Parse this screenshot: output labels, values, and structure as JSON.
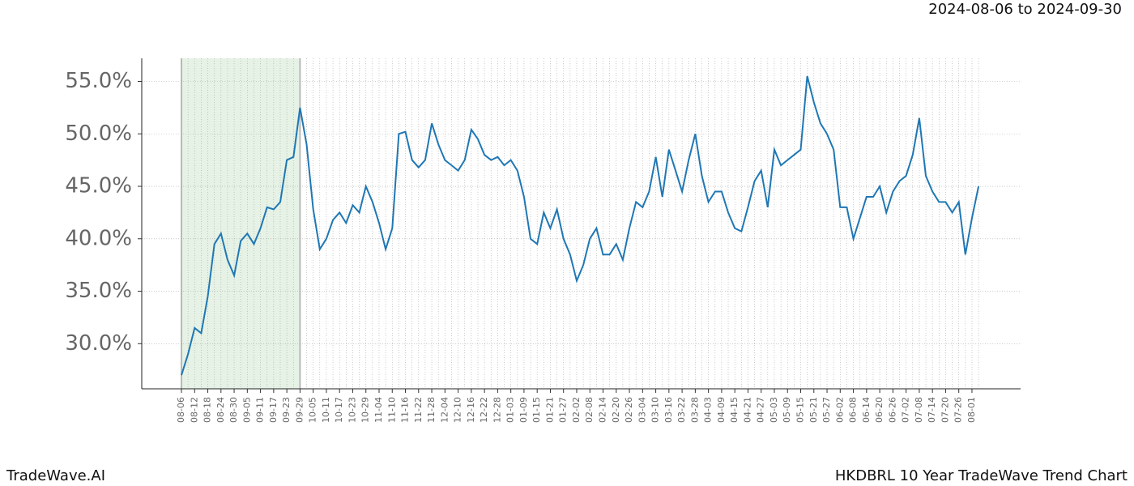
{
  "chart_data": {
    "type": "line",
    "date_range": "2024-08-06 to 2024-09-30",
    "brand": "TradeWave.AI",
    "footer_title": "HKDBRL 10 Year TradeWave Trend Chart",
    "highlight": {
      "start": "08-06",
      "end": "09-29",
      "color": "#e5f2e5"
    },
    "grid": true,
    "categories": [
      "08-06",
      null,
      "08-12",
      null,
      "08-18",
      null,
      "08-24",
      null,
      "08-30",
      null,
      "09-05",
      null,
      "09-11",
      null,
      "09-17",
      null,
      "09-23",
      null,
      "09-29",
      null,
      "10-05",
      null,
      "10-11",
      null,
      "10-17",
      null,
      "10-23",
      null,
      "10-29",
      null,
      "11-04",
      null,
      "11-10",
      null,
      "11-16",
      null,
      "11-22",
      null,
      "11-28",
      null,
      "12-04",
      null,
      "12-10",
      null,
      "12-16",
      null,
      "12-22",
      null,
      "12-28",
      null,
      "01-03",
      null,
      "01-09",
      null,
      "01-15",
      null,
      "01-21",
      null,
      "01-27",
      null,
      "02-02",
      null,
      "02-08",
      null,
      "02-14",
      null,
      "02-20",
      null,
      "02-26",
      null,
      "03-04",
      null,
      "03-10",
      null,
      "03-16",
      null,
      "03-22",
      null,
      "03-28",
      null,
      "04-03",
      null,
      "04-09",
      null,
      "04-15",
      null,
      "04-21",
      null,
      "04-27",
      null,
      "05-03",
      null,
      "05-09",
      null,
      "05-15",
      null,
      "05-21",
      null,
      "05-27",
      null,
      "06-02",
      null,
      "06-08",
      null,
      "06-14",
      null,
      "06-20",
      null,
      "06-26",
      null,
      "07-02",
      null,
      "07-08",
      null,
      "07-14",
      null,
      "07-20",
      null,
      "07-26",
      null,
      "08-01",
      null
    ],
    "series": [
      {
        "color": "#1f77b4",
        "values": [
          27.0,
          29.0,
          31.5,
          31.0,
          34.5,
          39.5,
          40.5,
          38.0,
          36.5,
          39.8,
          40.5,
          39.5,
          41.0,
          43.0,
          42.8,
          43.5,
          47.5,
          47.8,
          52.5,
          49.0,
          42.8,
          39.0,
          40.0,
          41.8,
          42.5,
          41.5,
          43.2,
          42.5,
          45.0,
          43.5,
          41.5,
          39.0,
          41.0,
          50.0,
          50.2,
          47.5,
          46.8,
          47.5,
          51.0,
          49.0,
          47.5,
          47.0,
          46.5,
          47.5,
          50.4,
          49.5,
          48.0,
          47.5,
          47.8,
          47.0,
          47.5,
          46.5,
          44.0,
          40.0,
          39.5,
          42.5,
          41.0,
          42.8,
          40.0,
          38.5,
          36.0,
          37.5,
          40.0,
          41.0,
          38.5,
          38.5,
          39.5,
          38.0,
          41.0,
          43.5,
          43.0,
          44.5,
          47.8,
          44.0,
          48.5,
          46.5,
          44.5,
          47.5,
          50.0,
          46.0,
          43.5,
          44.5,
          44.5,
          42.5,
          41.0,
          40.7,
          43.0,
          45.5,
          46.5,
          43.0,
          48.5,
          47.0,
          47.5,
          48.0,
          48.5,
          55.5,
          53.0,
          51.0,
          50.0,
          48.5,
          43.0,
          43.0,
          40.0,
          42.0,
          44.0,
          44.0,
          45.0,
          42.5,
          44.5,
          45.5,
          46.0,
          48.0,
          51.5,
          46.0,
          44.5,
          43.5,
          43.5,
          42.5,
          43.5,
          38.5,
          42.0,
          45.0
        ]
      }
    ],
    "ylim": [
      25.7,
      57.2
    ],
    "yticks": [
      {
        "value": 30,
        "label": "30.0%"
      },
      {
        "value": 35,
        "label": "35.0%"
      },
      {
        "value": 40,
        "label": "40.0%"
      },
      {
        "value": 45,
        "label": "45.0%"
      },
      {
        "value": 50,
        "label": "50.0%"
      },
      {
        "value": 55,
        "label": "55.0%"
      }
    ]
  }
}
